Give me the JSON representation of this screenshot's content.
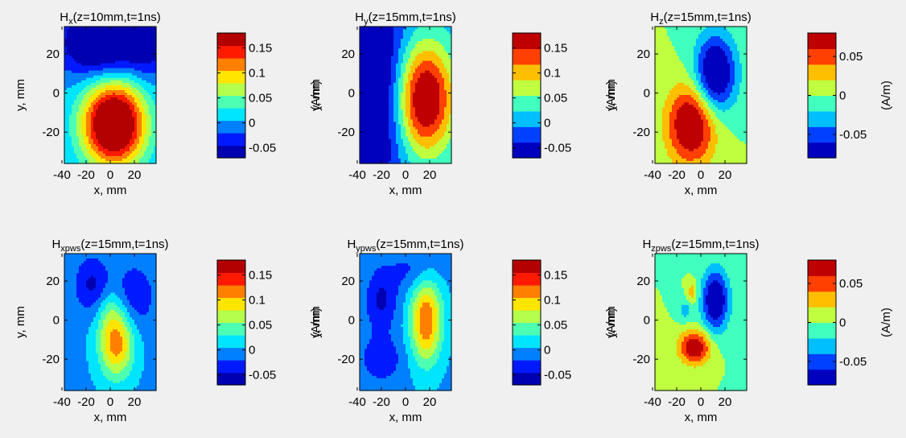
{
  "figure": {
    "background": "#f0f0f0",
    "colormap": "jet",
    "plot_type": "filled-contour"
  },
  "chart_data": [
    {
      "type": "heatmap",
      "title_main": "H",
      "title_sub": "x",
      "title_rest": "(z=10mm,t=1ns)",
      "xlabel": "x, mm",
      "ylabel": "y, mm",
      "cbar_label": "(A/m)",
      "xticks": [
        -40,
        -20,
        0,
        20
      ],
      "yticks": [
        20,
        0,
        -20
      ],
      "xlim": [
        -38,
        38
      ],
      "ylim": [
        -36,
        34
      ],
      "clim": [
        -0.07,
        0.18
      ],
      "cbar_ticks": [
        0.15,
        0.1,
        0.05,
        0,
        -0.05
      ],
      "cbar_tick_labels": [
        "0.15",
        "0.1",
        "0.05",
        "0",
        "-0.05"
      ],
      "levels": 10,
      "sources": [
        {
          "x": 3,
          "y": -16,
          "a": 0.24,
          "sx": 18,
          "sy": 15
        },
        {
          "x": -8,
          "y": 26,
          "a": -0.11,
          "sx": 22,
          "sy": 12
        },
        {
          "x": 30,
          "y": 26,
          "a": -0.06,
          "sx": 12,
          "sy": 12
        }
      ]
    },
    {
      "type": "heatmap",
      "title_main": "H",
      "title_sub": "y",
      "title_rest": "(z=15mm,t=1ns)",
      "xlabel": "x, mm",
      "ylabel": "y, mm",
      "cbar_label": "(A/m)",
      "xticks": [
        -40,
        -20,
        0,
        20
      ],
      "yticks": [
        20,
        0,
        -20
      ],
      "xlim": [
        -38,
        38
      ],
      "ylim": [
        -36,
        34
      ],
      "clim": [
        -0.07,
        0.18
      ],
      "cbar_ticks": [
        0.15,
        0.1,
        0.05,
        0,
        -0.05
      ],
      "cbar_tick_labels": [
        "0.15",
        "0.1",
        "0.05",
        "0",
        "-0.05"
      ],
      "levels": 8,
      "sources": [
        {
          "x": 16,
          "y": -3,
          "a": 0.2,
          "sx": 17,
          "sy": 20
        },
        {
          "x": -24,
          "y": 2,
          "a": -0.1,
          "sx": 18,
          "sy": 38
        }
      ]
    },
    {
      "type": "heatmap",
      "title_main": "H",
      "title_sub": "z",
      "title_rest": "(z=15mm,t=1ns)",
      "xlabel": "x, mm",
      "ylabel": "y, mm",
      "cbar_label": "(A/m)",
      "xticks": [
        -40,
        -20,
        0,
        20
      ],
      "yticks": [
        20,
        0,
        -20
      ],
      "xlim": [
        -38,
        38
      ],
      "ylim": [
        -36,
        34
      ],
      "clim": [
        -0.08,
        0.08
      ],
      "cbar_ticks": [
        0.05,
        0,
        -0.05
      ],
      "cbar_tick_labels": [
        "0.05",
        "0",
        "-0.05"
      ],
      "levels": 8,
      "sources": [
        {
          "x": -8,
          "y": -16,
          "a": 0.095,
          "sx": 14,
          "sy": 14
        },
        {
          "x": 12,
          "y": 10,
          "a": -0.1,
          "sx": 12,
          "sy": 14
        }
      ]
    },
    {
      "type": "heatmap",
      "title_main": "H",
      "title_sub": "xpws",
      "title_rest": "(z=15mm,t=1ns)",
      "xlabel": "x, mm",
      "ylabel": "y, mm",
      "cbar_label": "(A/m)",
      "xticks": [
        -40,
        -20,
        0,
        20
      ],
      "yticks": [
        20,
        0,
        -20
      ],
      "xlim": [
        -38,
        38
      ],
      "ylim": [
        -36,
        34
      ],
      "clim": [
        -0.07,
        0.18
      ],
      "cbar_ticks": [
        0.15,
        0.1,
        0.05,
        0,
        -0.05
      ],
      "cbar_tick_labels": [
        "0.15",
        "0.1",
        "0.05",
        "0",
        "-0.05"
      ],
      "levels": 10,
      "sources": [
        {
          "x": 5,
          "y": -12,
          "a": 0.12,
          "sx": 10,
          "sy": 12
        },
        {
          "x": -15,
          "y": 18,
          "a": -0.05,
          "sx": 10,
          "sy": 10
        },
        {
          "x": 20,
          "y": 12,
          "a": -0.04,
          "sx": 12,
          "sy": 12
        },
        {
          "x": 0,
          "y": 5,
          "a": 0.03,
          "sx": 8,
          "sy": 8
        }
      ]
    },
    {
      "type": "heatmap",
      "title_main": "H",
      "title_sub": "ypws",
      "title_rest": "(z=15mm,t=1ns)",
      "xlabel": "x, mm",
      "ylabel": "y, mm",
      "cbar_label": "(A/m)",
      "xticks": [
        -40,
        -20,
        0,
        20
      ],
      "yticks": [
        20,
        0,
        -20
      ],
      "xlim": [
        -38,
        38
      ],
      "ylim": [
        -36,
        34
      ],
      "clim": [
        -0.07,
        0.18
      ],
      "cbar_ticks": [
        0.15,
        0.1,
        0.05,
        0,
        -0.05
      ],
      "cbar_tick_labels": [
        "0.15",
        "0.1",
        "0.05",
        "0",
        "-0.05"
      ],
      "levels": 10,
      "sources": [
        {
          "x": 17,
          "y": 0,
          "a": 0.13,
          "sx": 9,
          "sy": 15
        },
        {
          "x": -20,
          "y": 10,
          "a": -0.05,
          "sx": 9,
          "sy": 11
        },
        {
          "x": -20,
          "y": -20,
          "a": -0.04,
          "sx": 12,
          "sy": 8
        },
        {
          "x": 8,
          "y": 25,
          "a": -0.03,
          "sx": 15,
          "sy": 8
        }
      ]
    },
    {
      "type": "heatmap",
      "title_main": "H",
      "title_sub": "zpws",
      "title_rest": "(z=15mm,t=1ns)",
      "xlabel": "x, mm",
      "ylabel": "y, mm",
      "cbar_label": "(A/m)",
      "xticks": [
        -40,
        -20,
        0,
        20
      ],
      "yticks": [
        20,
        0,
        -20
      ],
      "xlim": [
        -38,
        38
      ],
      "ylim": [
        -36,
        34
      ],
      "clim": [
        -0.08,
        0.08
      ],
      "cbar_ticks": [
        0.05,
        0,
        -0.05
      ],
      "cbar_tick_labels": [
        "0.05",
        "0",
        "-0.05"
      ],
      "levels": 8,
      "sources": [
        {
          "x": -5,
          "y": -14,
          "a": 0.085,
          "sx": 9,
          "sy": 6
        },
        {
          "x": 12,
          "y": 10,
          "a": -0.09,
          "sx": 8,
          "sy": 11
        },
        {
          "x": -7,
          "y": 14,
          "a": 0.035,
          "sx": 3,
          "sy": 4
        },
        {
          "x": -13,
          "y": 5,
          "a": -0.03,
          "sx": 4,
          "sy": 4
        }
      ]
    }
  ]
}
